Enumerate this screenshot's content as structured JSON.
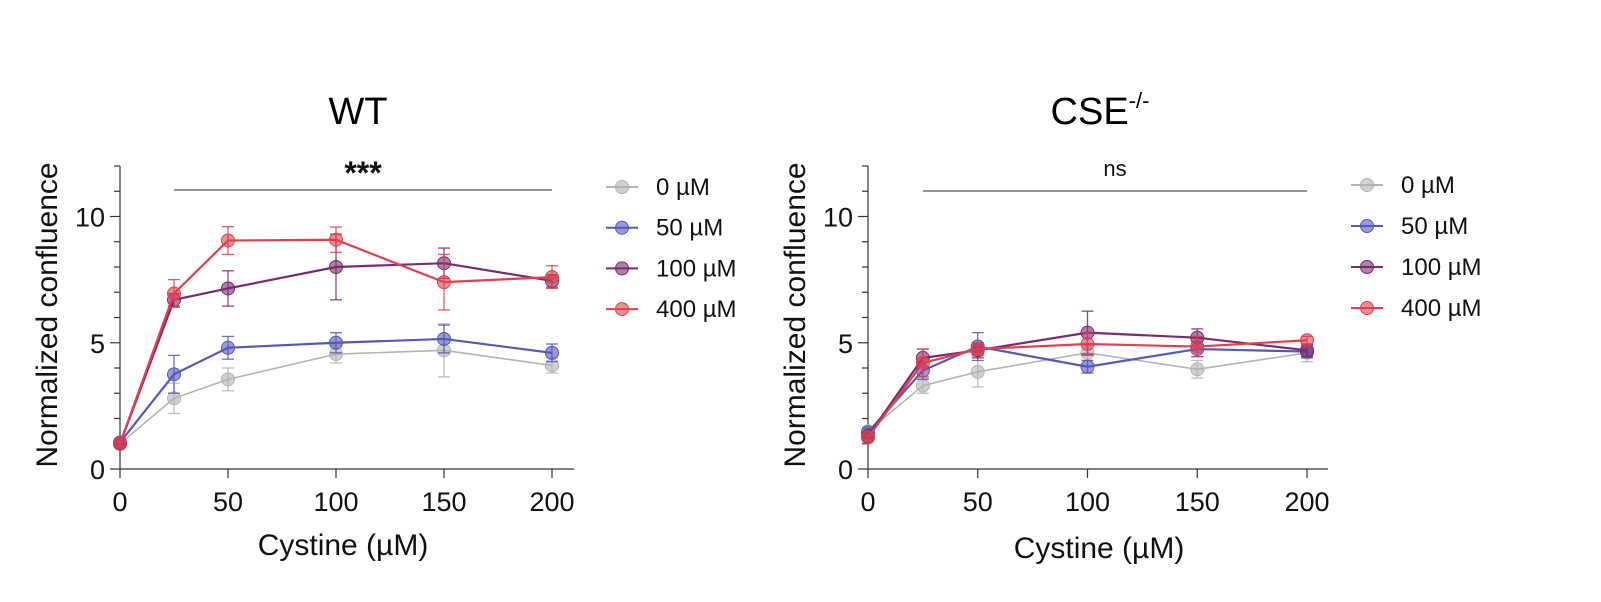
{
  "chart_data": [
    {
      "type": "line",
      "title": "WT",
      "xlabel": "Cystine (µM)",
      "ylabel": "Normalized confluence",
      "x": [
        0,
        25,
        50,
        100,
        150,
        200
      ],
      "x_ticks": [
        0,
        50,
        100,
        150,
        200
      ],
      "xlim": [
        0,
        200
      ],
      "y_ticks": [
        0,
        5,
        10
      ],
      "ylim": [
        0,
        12
      ],
      "grid": false,
      "legend_position": "right",
      "annotation": "***",
      "bracket": [
        25,
        200
      ],
      "series": [
        {
          "name": "0 µM",
          "color": "#b3b3b3",
          "values": [
            1.0,
            2.8,
            3.55,
            4.55,
            4.7,
            4.1
          ],
          "errors": [
            0.1,
            0.6,
            0.45,
            0.35,
            1.05,
            0.3
          ]
        },
        {
          "name": "50 µM",
          "color": "#5558b8",
          "values": [
            1.05,
            3.75,
            4.8,
            5.0,
            5.15,
            4.6
          ],
          "errors": [
            0.1,
            0.75,
            0.45,
            0.4,
            0.55,
            0.35
          ]
        },
        {
          "name": "100 µM",
          "color": "#7a2a6e",
          "values": [
            1.0,
            6.7,
            7.15,
            8.0,
            8.15,
            7.45
          ],
          "errors": [
            0.1,
            0.25,
            0.7,
            1.3,
            0.6,
            0.25
          ]
        },
        {
          "name": "400 µM",
          "color": "#e0404e",
          "values": [
            1.0,
            6.95,
            9.05,
            9.08,
            7.4,
            7.6
          ],
          "errors": [
            0.1,
            0.55,
            0.55,
            0.5,
            1.1,
            0.45
          ]
        }
      ]
    },
    {
      "type": "line",
      "title": "CSE",
      "title_superscript": "-/-",
      "xlabel": "Cystine (µM)",
      "ylabel": "Normalized confluence",
      "x": [
        0,
        25,
        50,
        100,
        150,
        200
      ],
      "x_ticks": [
        0,
        50,
        100,
        150,
        200
      ],
      "xlim": [
        0,
        200
      ],
      "y_ticks": [
        0,
        5,
        10
      ],
      "ylim": [
        0,
        12
      ],
      "grid": false,
      "legend_position": "right",
      "annotation": "ns",
      "bracket": [
        25,
        200
      ],
      "series": [
        {
          "name": "0 µM",
          "color": "#b3b3b3",
          "values": [
            1.5,
            3.3,
            3.85,
            4.6,
            3.95,
            4.6
          ],
          "errors": [
            0.15,
            0.3,
            0.6,
            0.3,
            0.35,
            0.35
          ]
        },
        {
          "name": "50 µM",
          "color": "#5558b8",
          "values": [
            1.45,
            3.9,
            4.85,
            4.05,
            4.75,
            4.65
          ],
          "errors": [
            0.15,
            0.35,
            0.55,
            0.25,
            0.3,
            0.25
          ]
        },
        {
          "name": "100 µM",
          "color": "#7a2a6e",
          "values": [
            1.3,
            4.4,
            4.7,
            5.4,
            5.2,
            4.7
          ],
          "errors": [
            0.1,
            0.35,
            0.3,
            0.85,
            0.35,
            0.25
          ]
        },
        {
          "name": "400 µM",
          "color": "#e0404e",
          "values": [
            1.25,
            4.2,
            4.75,
            4.95,
            4.85,
            5.1
          ],
          "errors": [
            0.1,
            0.55,
            0.25,
            0.45,
            0.4,
            0.15
          ]
        }
      ]
    }
  ]
}
